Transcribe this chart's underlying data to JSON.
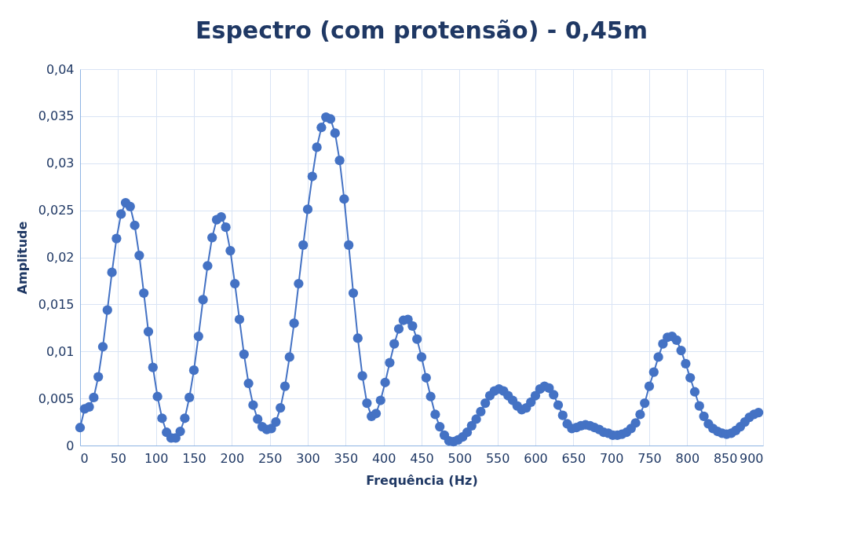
{
  "chart_data": {
    "type": "line",
    "title": "Espectro (com protensão) - 0,45m",
    "xlabel": "Frequência (Hz)",
    "ylabel": "Amplitude",
    "x": [
      0,
      6,
      12,
      18,
      24,
      30,
      36,
      42,
      48,
      54,
      60,
      66,
      72,
      78,
      84,
      90,
      96,
      102,
      108,
      114,
      120,
      126,
      132,
      138,
      144,
      150,
      156,
      162,
      168,
      174,
      180,
      186,
      192,
      198,
      204,
      210,
      216,
      222,
      228,
      234,
      240,
      246,
      252,
      258,
      264,
      270,
      276,
      282,
      288,
      294,
      300,
      306,
      312,
      318,
      324,
      330,
      336,
      342,
      348,
      354,
      360,
      366,
      372,
      378,
      384,
      390,
      396,
      402,
      408,
      414,
      420,
      426,
      432,
      438,
      444,
      450,
      456,
      462,
      468,
      474,
      480,
      486,
      492,
      498,
      504,
      510,
      516,
      522,
      528,
      534,
      540,
      546,
      552,
      558,
      564,
      570,
      576,
      582,
      588,
      594,
      600,
      606,
      612,
      618,
      624,
      630,
      636,
      642,
      648,
      654,
      660,
      666,
      672,
      678,
      684,
      690,
      696,
      702,
      708,
      714,
      720,
      726,
      732,
      738,
      744,
      750,
      756,
      762,
      768,
      774,
      780,
      786,
      792,
      798,
      804,
      810,
      816,
      822,
      828,
      834,
      840,
      846,
      852,
      858,
      864,
      870,
      876,
      882,
      888,
      894
    ],
    "series": [
      {
        "color": "#4472c4",
        "values": [
          0.0019,
          0.0039,
          0.0041,
          0.0051,
          0.0073,
          0.0105,
          0.0144,
          0.0184,
          0.022,
          0.0246,
          0.0258,
          0.0254,
          0.0234,
          0.0202,
          0.0162,
          0.0121,
          0.0083,
          0.0052,
          0.0029,
          0.0014,
          0.0008,
          0.0008,
          0.0015,
          0.0029,
          0.0051,
          0.008,
          0.0116,
          0.0155,
          0.0191,
          0.0221,
          0.024,
          0.0243,
          0.0232,
          0.0207,
          0.0172,
          0.0134,
          0.0097,
          0.0066,
          0.0043,
          0.0028,
          0.002,
          0.0017,
          0.0018,
          0.0025,
          0.004,
          0.0063,
          0.0094,
          0.013,
          0.0172,
          0.0213,
          0.0251,
          0.0286,
          0.0317,
          0.0338,
          0.0349,
          0.0347,
          0.0332,
          0.0303,
          0.0262,
          0.0213,
          0.0162,
          0.0114,
          0.0074,
          0.0045,
          0.0031,
          0.0034,
          0.0048,
          0.0067,
          0.0088,
          0.0108,
          0.0124,
          0.0133,
          0.0134,
          0.0127,
          0.0113,
          0.0094,
          0.0072,
          0.0052,
          0.0033,
          0.002,
          0.0011,
          0.0005,
          0.0004,
          0.0006,
          0.0009,
          0.0014,
          0.0021,
          0.0028,
          0.0036,
          0.0045,
          0.0053,
          0.0058,
          0.006,
          0.0058,
          0.0053,
          0.0048,
          0.0042,
          0.0038,
          0.004,
          0.0046,
          0.0053,
          0.006,
          0.0063,
          0.0061,
          0.0054,
          0.0043,
          0.0032,
          0.0023,
          0.0018,
          0.0019,
          0.0021,
          0.0022,
          0.0021,
          0.0019,
          0.0017,
          0.0014,
          0.0013,
          0.0011,
          0.0011,
          0.0012,
          0.0014,
          0.0018,
          0.0024,
          0.0033,
          0.0045,
          0.0063,
          0.0078,
          0.0094,
          0.0108,
          0.0115,
          0.0116,
          0.0112,
          0.0101,
          0.0087,
          0.0072,
          0.0057,
          0.0042,
          0.0031,
          0.0023,
          0.0018,
          0.0015,
          0.0013,
          0.0012,
          0.0013,
          0.0016,
          0.002,
          0.0025,
          0.003,
          0.0033,
          0.0035
        ]
      }
    ],
    "xlim": [
      0,
      900
    ],
    "xticks": [
      0,
      50,
      100,
      150,
      200,
      250,
      300,
      350,
      400,
      450,
      500,
      550,
      600,
      650,
      700,
      750,
      800,
      850,
      900
    ],
    "ylim": [
      0,
      0.04
    ],
    "yticks": [
      0,
      {
        "value": 0.005,
        "label": "0,005"
      },
      {
        "value": 0.01,
        "label": "0,01"
      },
      {
        "value": 0.015,
        "label": "0,015"
      },
      {
        "value": 0.02,
        "label": "0,02"
      },
      {
        "value": 0.025,
        "label": "0,025"
      },
      {
        "value": 0.03,
        "label": "0,03"
      },
      {
        "value": 0.035,
        "label": "0,035"
      },
      {
        "value": 0.04,
        "label": "0,04"
      }
    ],
    "grid": true,
    "marker": "circle",
    "line_style": "solid"
  }
}
